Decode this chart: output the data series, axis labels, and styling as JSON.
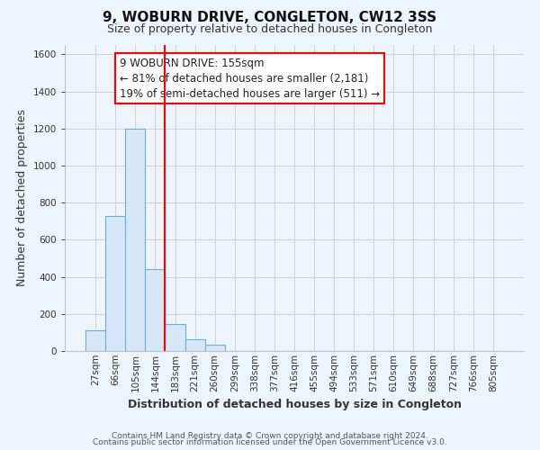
{
  "title": "9, WOBURN DRIVE, CONGLETON, CW12 3SS",
  "subtitle": "Size of property relative to detached houses in Congleton",
  "xlabel": "Distribution of detached houses by size in Congleton",
  "ylabel": "Number of detached properties",
  "bar_labels": [
    "27sqm",
    "66sqm",
    "105sqm",
    "144sqm",
    "183sqm",
    "221sqm",
    "260sqm",
    "299sqm",
    "338sqm",
    "377sqm",
    "416sqm",
    "455sqm",
    "494sqm",
    "533sqm",
    "571sqm",
    "610sqm",
    "649sqm",
    "688sqm",
    "727sqm",
    "766sqm",
    "805sqm"
  ],
  "bar_values": [
    110,
    730,
    1200,
    440,
    145,
    62,
    35,
    0,
    0,
    0,
    0,
    0,
    0,
    0,
    0,
    0,
    0,
    0,
    0,
    0,
    0
  ],
  "bar_color": "#d6e8f7",
  "bar_edge_color": "#6baed6",
  "grid_color": "#cccccc",
  "background_color": "#eef4fb",
  "red_line_x": 3.5,
  "ylim": [
    0,
    1650
  ],
  "yticks": [
    0,
    200,
    400,
    600,
    800,
    1000,
    1200,
    1400,
    1600
  ],
  "annotation_line1": "9 WOBURN DRIVE: 155sqm",
  "annotation_line2": "← 81% of detached houses are smaller (2,181)",
  "annotation_line3": "19% of semi-detached houses are larger (511) →",
  "footer_line1": "Contains HM Land Registry data © Crown copyright and database right 2024.",
  "footer_line2": "Contains public sector information licensed under the Open Government Licence v3.0.",
  "title_fontsize": 11,
  "subtitle_fontsize": 9,
  "axis_label_fontsize": 9,
  "tick_fontsize": 7.5,
  "annotation_fontsize": 8.5,
  "footer_fontsize": 6.5
}
